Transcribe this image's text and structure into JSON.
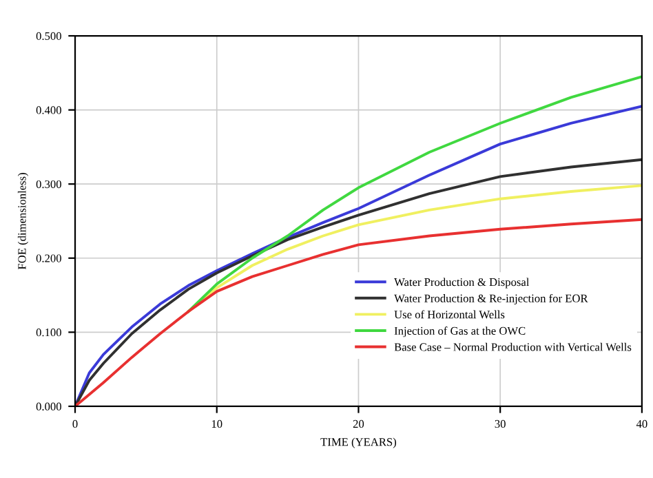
{
  "chart_data": {
    "type": "line",
    "xlabel": "TIME (YEARS)",
    "ylabel": "FOE (dimensionless)",
    "xlim": [
      0,
      40
    ],
    "xticks": [
      0,
      10,
      20,
      30,
      40
    ],
    "ylim": [
      0,
      0.5
    ],
    "yticks": [
      {
        "value": 0,
        "label": "0.000"
      },
      {
        "value": 0.1,
        "label": "0.100"
      },
      {
        "value": 0.2,
        "label": "0.200"
      },
      {
        "value": 0.3,
        "label": "0.300"
      },
      {
        "value": 0.4,
        "label": "0.400"
      },
      {
        "value": 0.5,
        "label": "0.500"
      }
    ],
    "grid": true,
    "legend": "right",
    "marker": "none",
    "line_style": "solid",
    "x": [
      0,
      1,
      2,
      4,
      6,
      8,
      10,
      12.5,
      15,
      17.5,
      20,
      25,
      30,
      35,
      40
    ],
    "series": [
      {
        "name": "Water Production & Disposal",
        "color": "#3a3ad8",
        "values": [
          0,
          0.045,
          0.07,
          0.107,
          0.138,
          0.163,
          0.183,
          0.206,
          0.228,
          0.248,
          0.267,
          0.312,
          0.354,
          0.382,
          0.405
        ]
      },
      {
        "name": "Water Production & Re-injection for EOR",
        "color": "#303030",
        "values": [
          0,
          0.035,
          0.058,
          0.098,
          0.13,
          0.158,
          0.18,
          0.203,
          0.225,
          0.242,
          0.258,
          0.287,
          0.31,
          0.323,
          0.333
        ]
      },
      {
        "name": "Use of Horizontal Wells",
        "color": "#f0f060",
        "values": [
          null,
          null,
          null,
          null,
          null,
          0.128,
          0.16,
          0.19,
          0.212,
          0.23,
          0.245,
          0.265,
          0.28,
          0.29,
          0.298
        ]
      },
      {
        "name": "Injection of Gas at the OWC",
        "color": "#40d840",
        "values": [
          null,
          null,
          null,
          null,
          null,
          0.128,
          0.165,
          0.2,
          0.23,
          0.265,
          0.295,
          0.343,
          0.382,
          0.417,
          0.445
        ]
      },
      {
        "name": "Base Case – Normal Production with Vertical Wells",
        "color": "#e83030",
        "values": [
          0,
          0.016,
          0.032,
          0.066,
          0.098,
          0.128,
          0.155,
          0.175,
          0.19,
          0.205,
          0.218,
          0.23,
          0.239,
          0.246,
          0.252
        ]
      }
    ]
  }
}
